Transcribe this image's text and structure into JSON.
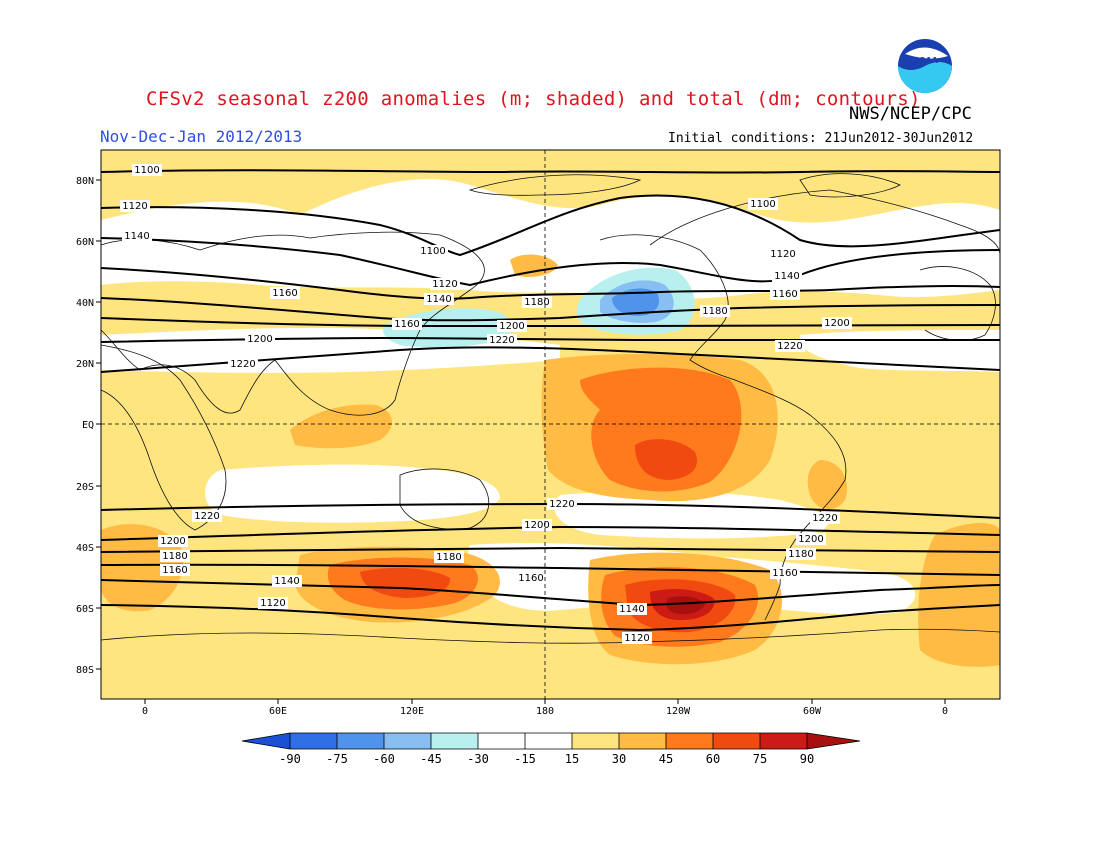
{
  "title": "CFSv2 seasonal z200 anomalies (m; shaded) and total (dm; contours)",
  "agency": "NWS/NCEP/CPC",
  "logo_text": "NOAA",
  "season": "Nov-Dec-Jan 2012/2013",
  "initial_conditions": "Initial conditions: 21Jun2012-30Jun2012",
  "lat_labels": [
    "80N",
    "60N",
    "40N",
    "20N",
    "EQ",
    "20S",
    "40S",
    "60S",
    "80S"
  ],
  "lon_labels": [
    "0",
    "60E",
    "120E",
    "180",
    "120W",
    "60W",
    "0"
  ],
  "colors": {
    "c_neg90": "#1a4fd6",
    "c_neg75": "#2f6fe6",
    "c_neg60": "#4f94ea",
    "c_neg45": "#87bff2",
    "c_neg30": "#b8f0f0",
    "c_neu": "#ffffff",
    "c_15": "#ffe580",
    "c_30": "#ffbb44",
    "c_45": "#ff7a1c",
    "c_60": "#f04a10",
    "c_75": "#cc1a14",
    "c_90": "#a81010"
  },
  "colorbar": {
    "ticks": [
      "-90",
      "-75",
      "-60",
      "-45",
      "-30",
      "-15",
      "15",
      "30",
      "45",
      "60",
      "75",
      "90"
    ]
  },
  "contour_labels": [
    "1100",
    "1120",
    "1140",
    "1160",
    "1180",
    "1200",
    "1220"
  ],
  "map_data": {
    "projection": "cylindrical equidistant",
    "lon_range": [
      -20,
      340
    ],
    "lat_range": [
      -90,
      90
    ],
    "contour_interval_dm": 20,
    "shading_interval_m": 15
  }
}
